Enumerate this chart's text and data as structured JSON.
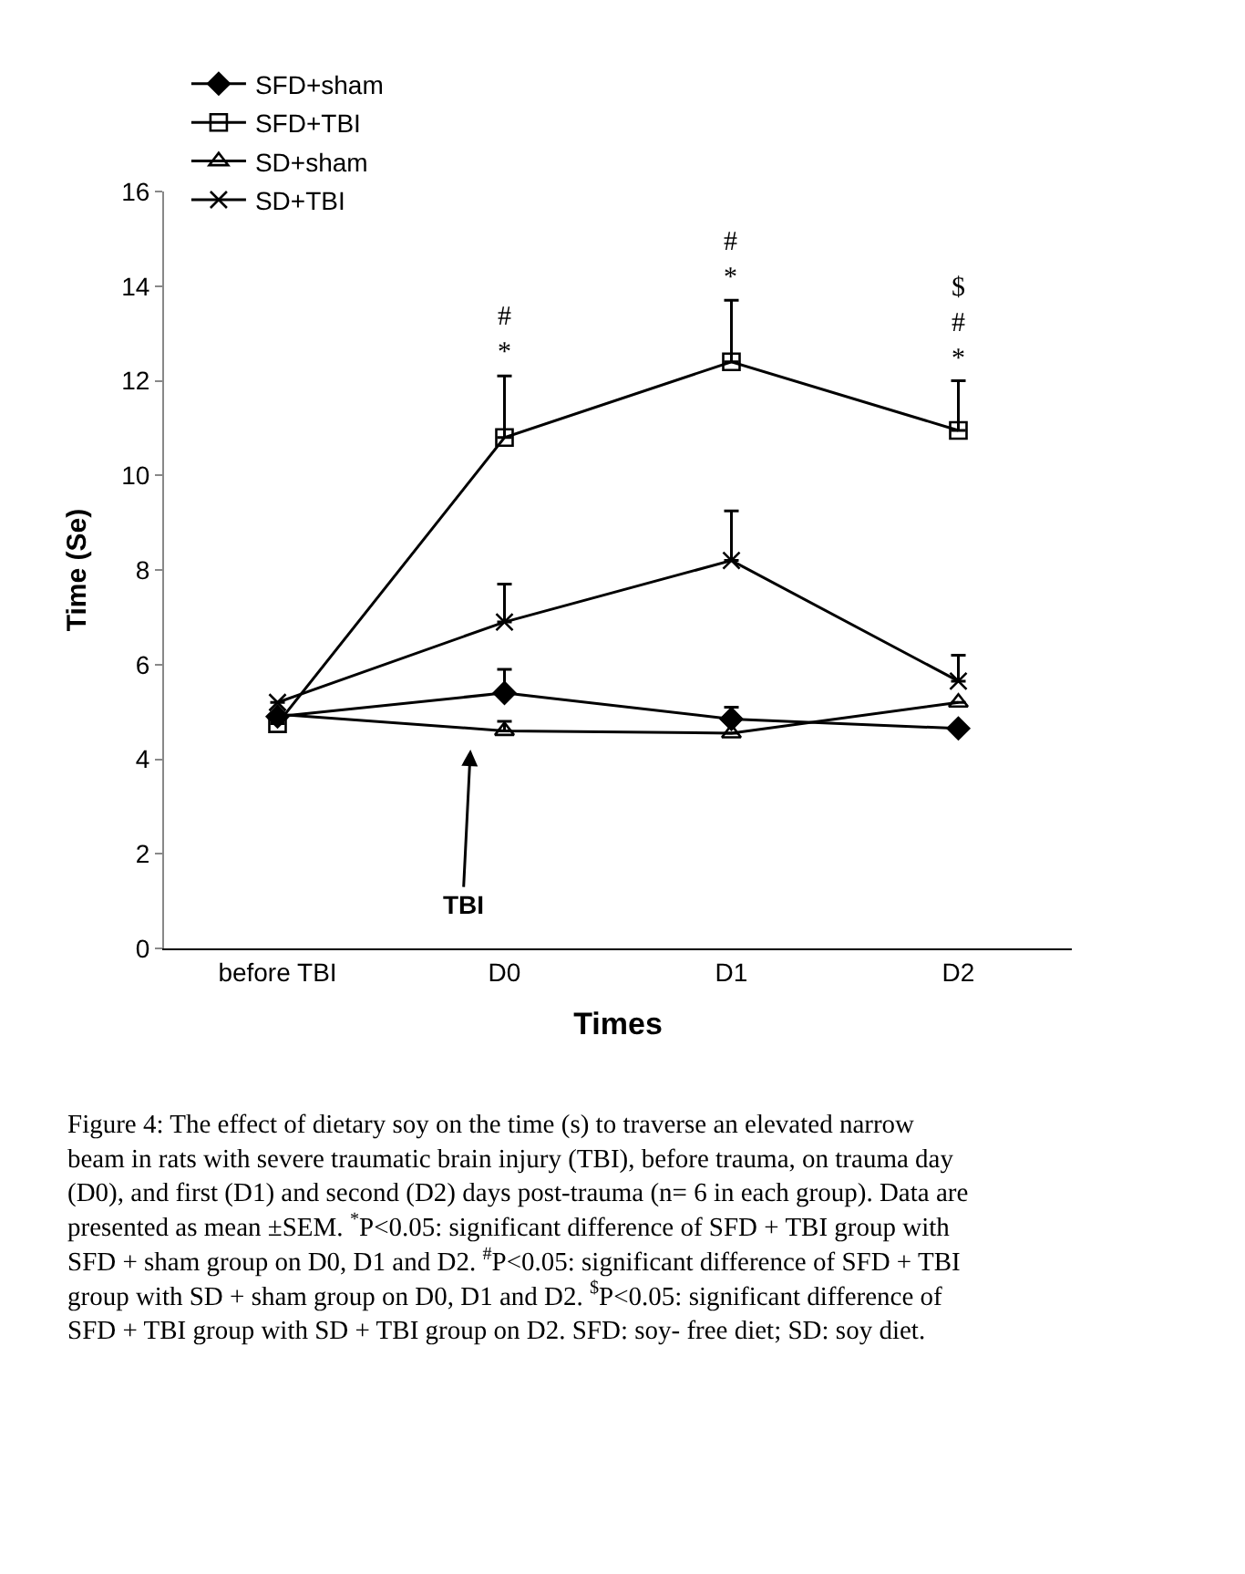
{
  "chart_data": {
    "type": "line",
    "categories": [
      "before TBI",
      "D0",
      "D1",
      "D2"
    ],
    "xlabel": "Times",
    "ylabel": "Time (Se)",
    "ylim": [
      0,
      16
    ],
    "yticks": [
      0,
      2,
      4,
      6,
      8,
      10,
      12,
      14,
      16
    ],
    "legend": "top left",
    "series": [
      {
        "name": "SFD+sham",
        "color": "#000000",
        "marker": "diamond",
        "values": [
          4.9,
          5.4,
          4.85,
          4.65
        ],
        "errors": [
          null,
          [
            5.4,
            5.9
          ],
          [
            4.85,
            5.1
          ],
          null
        ]
      },
      {
        "name": "SFD+TBI",
        "color": "#000000",
        "marker": "square",
        "values": [
          4.75,
          10.8,
          12.4,
          10.95
        ],
        "errors": [
          null,
          [
            10.8,
            12.1
          ],
          [
            12.4,
            13.7
          ],
          [
            10.95,
            12.0
          ]
        ]
      },
      {
        "name": "SD+sham",
        "color": "#000000",
        "marker": "triangle",
        "values": [
          4.95,
          4.6,
          4.55,
          5.2
        ],
        "errors": [
          null,
          [
            4.6,
            4.8
          ],
          null,
          null
        ]
      },
      {
        "name": "SD+TBI",
        "color": "#000000",
        "marker": "cross",
        "values": [
          5.2,
          6.9,
          8.2,
          5.65
        ],
        "errors": [
          null,
          [
            6.9,
            7.7
          ],
          [
            8.2,
            9.25
          ],
          [
            5.65,
            6.2
          ]
        ]
      }
    ],
    "annotations": [
      {
        "text": "#\n*",
        "x": "D0",
        "y": 12.1
      },
      {
        "text": "#\n*",
        "x": "D1",
        "y": 13.7
      },
      {
        "text": "$\n#\n*",
        "x": "D2",
        "y": 12.0
      },
      "TBI",
      "Figure 4: The effect of dietary soy on the time (s) to traverse an elevated narrow beam in rats with severe traumatic brain injury (TBI), before trauma, on trauma day (D0), and first (D1) and second (D2) days post-trauma (n= 6 in each group). Data are presented as mean ±SEM. $^{*}$P<0.05: significant difference of SFD + TBI group with SFD + sham group on D0, D1 and D2. $^{#}$P<0.05: significant difference of SFD + TBI group with SD + sham group on D0, D1 and D2. $^{$}$P<0.05: significant difference of SFD + TBI group with SD + TBI group on D2. SFD: soy- free diet; SD: soy diet."
    ]
  }
}
